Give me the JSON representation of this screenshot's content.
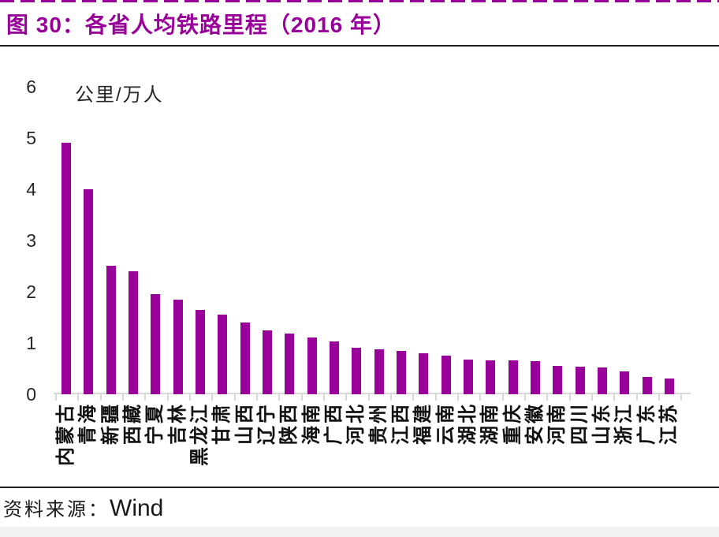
{
  "figure": {
    "title": "图 30：各省人均铁路里程（2016 年）",
    "source_label": "资料来源：",
    "source_value": "Wind",
    "accent_color": "#990099",
    "axis_color": "#d9d9d9",
    "rule_color": "#1f1f1f"
  },
  "chart_data": {
    "type": "bar",
    "title": "图 30：各省人均铁路里程（2016 年）",
    "unit_label": "公里/万人",
    "xlabel": "",
    "ylabel": "公里/万人",
    "categories": [
      "内蒙古",
      "青海",
      "新疆",
      "西藏",
      "宁夏",
      "吉林",
      "黑龙江",
      "甘肃",
      "山西",
      "辽宁",
      "陕西",
      "海南",
      "广西",
      "河北",
      "贵州",
      "江西",
      "福建",
      "云南",
      "湖北",
      "湖南",
      "重庆",
      "安徽",
      "河南",
      "四川",
      "山东",
      "浙江",
      "广东",
      "江苏"
    ],
    "values": [
      4.9,
      4.0,
      2.5,
      2.4,
      1.95,
      1.85,
      1.65,
      1.55,
      1.4,
      1.25,
      1.18,
      1.1,
      1.03,
      0.9,
      0.88,
      0.85,
      0.8,
      0.75,
      0.68,
      0.66,
      0.66,
      0.65,
      0.56,
      0.54,
      0.52,
      0.44,
      0.34,
      0.31
    ],
    "ylim": [
      0,
      6
    ],
    "yticks": [
      6,
      5,
      4,
      3,
      2,
      1,
      0
    ],
    "bar_color": "#990099",
    "grid": false,
    "legend_position": "none",
    "source": "Wind"
  }
}
